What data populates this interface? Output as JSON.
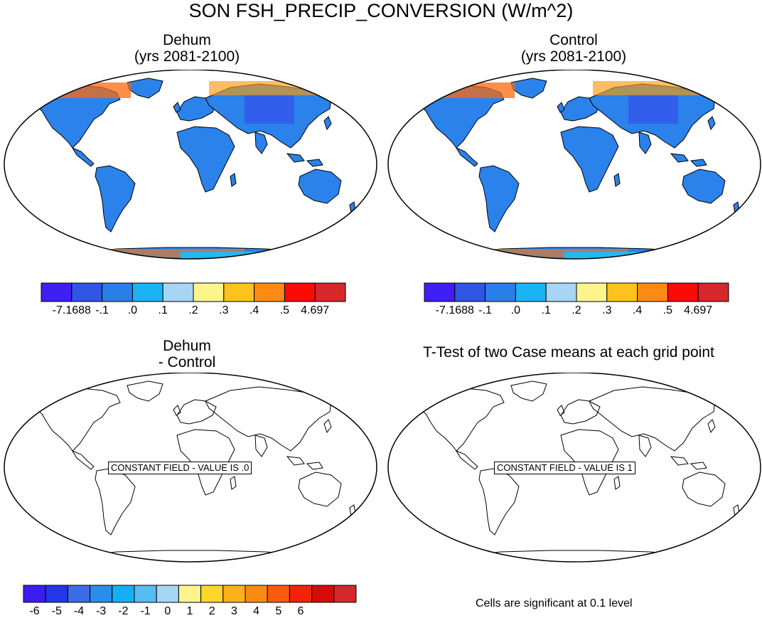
{
  "title": "SON FSH_PRECIP_CONVERSION (W/m^2)",
  "panels": [
    {
      "id": "dehum",
      "title_line1": "Dehum",
      "title_line2": "(yrs 2081-2100)"
    },
    {
      "id": "control",
      "title_line1": "Control",
      "title_line2": "(yrs 2081-2100)"
    },
    {
      "id": "diff",
      "title_line1": "Dehum",
      "title_line2": "- Control",
      "constant_label": "CONSTANT FIELD - VALUE IS .0"
    },
    {
      "id": "ttest",
      "title_line1": "T-Test of two Case means at each grid point",
      "constant_label": "CONSTANT FIELD - VALUE IS 1"
    }
  ],
  "colorbar_top": {
    "colors": [
      "#3f1ff2",
      "#2e55e4",
      "#2a7ee8",
      "#1ab4f4",
      "#a6d6f4",
      "#fdf58c",
      "#fcc21e",
      "#fd8a13",
      "#fb0a06",
      "#d6272b"
    ],
    "labels": [
      "-7.1688",
      "-.1",
      ".0",
      ".1",
      ".2",
      ".3",
      ".4",
      ".5",
      "4.697"
    ]
  },
  "colorbar_bottom": {
    "colors": [
      "#3a1ef0",
      "#2436ea",
      "#3c6be6",
      "#2a8ceb",
      "#15b0f4",
      "#57bcf0",
      "#a6d6f4",
      "#fdf58c",
      "#fdd62a",
      "#fcb216",
      "#fb8a13",
      "#fb5a0c",
      "#f5220a",
      "#d60c08",
      "#d6272b"
    ],
    "labels": [
      "-6",
      "-5",
      "-4",
      "-3",
      "-2",
      "-1",
      "0",
      "1",
      "2",
      "3",
      "4",
      "5",
      "6"
    ]
  },
  "significance_note": "Cells are significant at 0.1 level",
  "colors": {
    "land": "#2a82ea",
    "antarctic": "#22b8f2"
  }
}
